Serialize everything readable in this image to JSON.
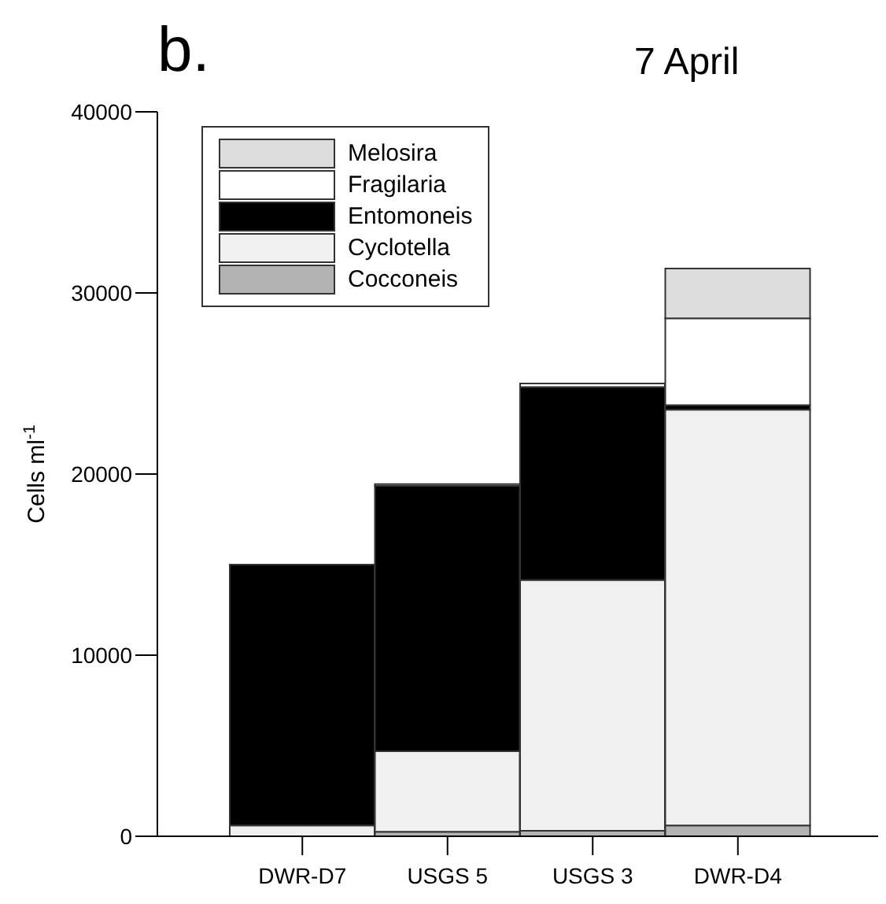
{
  "chart_data": {
    "type": "bar",
    "stacked": true,
    "title": "b.",
    "subtitle": "7 April",
    "ylabel": "Cells ml$^{-1}$",
    "categories": [
      "DWR-D7",
      "USGS 5",
      "USGS 3",
      "DWR-D4"
    ],
    "series": [
      {
        "name": "Cocconeis",
        "color": "#b3b3b3",
        "values": [
          0,
          250,
          300,
          600
        ]
      },
      {
        "name": "Cyclotella",
        "color": "#f0f0f0",
        "values": [
          600,
          4450,
          13850,
          22950
        ]
      },
      {
        "name": "Entomoneis",
        "color": "#000000",
        "values": [
          14400,
          14650,
          10650,
          250
        ]
      },
      {
        "name": "Fragilaria",
        "color": "#ffffff",
        "values": [
          0,
          100,
          200,
          4800
        ]
      },
      {
        "name": "Melosira",
        "color": "#dddddd",
        "values": [
          0,
          0,
          0,
          2750
        ]
      }
    ],
    "ylim": [
      0,
      40000
    ],
    "yticks": [
      0,
      10000,
      20000,
      30000,
      40000
    ],
    "grid": false,
    "legend": "top left"
  }
}
